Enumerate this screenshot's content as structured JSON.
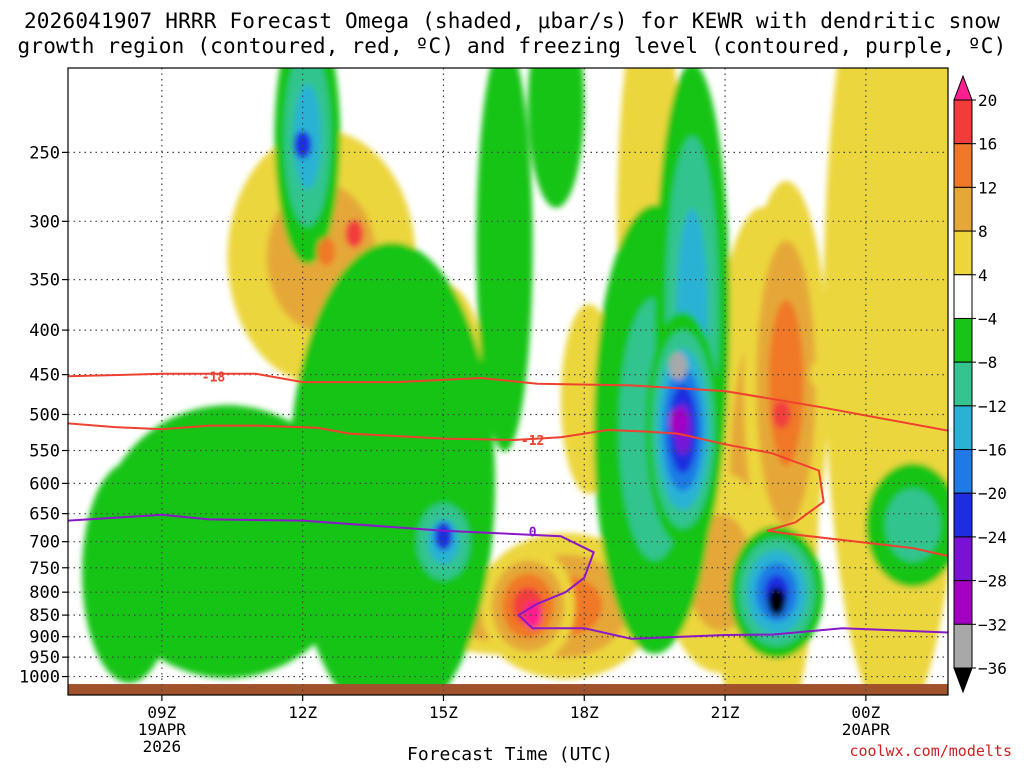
{
  "title_line1": "2026041907 HRRR Forecast Omega (shaded, μbar/s) for KEWR with dendritic snow",
  "title_line2": "growth region (contoured, red, ºC) and freezing level (contoured, purple, ºC)",
  "xlabel": "Forecast Time (UTC)",
  "credit": "coolwx.com/modelts",
  "chart_data": {
    "type": "heatmap",
    "x_unit": "hours after 2026041907 UTC",
    "xlim": [
      7,
      25.75
    ],
    "y_axis": {
      "label": "",
      "scale": "log",
      "range": [
        1050,
        200
      ],
      "ticks": [
        250,
        300,
        350,
        400,
        450,
        500,
        550,
        600,
        650,
        700,
        750,
        800,
        850,
        900,
        950,
        1000
      ]
    },
    "x_ticks": [
      {
        "hour": 9,
        "label": "09Z",
        "sub1": "19APR",
        "sub2": "2026"
      },
      {
        "hour": 12,
        "label": "12Z",
        "sub1": "",
        "sub2": ""
      },
      {
        "hour": 15,
        "label": "15Z",
        "sub1": "",
        "sub2": ""
      },
      {
        "hour": 18,
        "label": "18Z",
        "sub1": "",
        "sub2": ""
      },
      {
        "hour": 21,
        "label": "21Z",
        "sub1": "",
        "sub2": ""
      },
      {
        "hour": 24,
        "label": "00Z",
        "sub1": "20APR",
        "sub2": ""
      }
    ],
    "grid": true,
    "colorbar": {
      "levels": [
        "20",
        "16",
        "12",
        "8",
        "4",
        "−4",
        "−8",
        "−12",
        "−16",
        "−20",
        "−24",
        "−28",
        "−32",
        "−36"
      ],
      "colors": [
        "#ff1f8f",
        "#f23c3c",
        "#f07828",
        "#e5a838",
        "#ecd63c",
        "#ffffff",
        "#19c419",
        "#33c48f",
        "#2ab2d4",
        "#1f7ae6",
        "#1f2de0",
        "#7a12d6",
        "#a300c2",
        "#a8a8a8",
        "#000000"
      ]
    },
    "omega_features": [
      {
        "hour": 12.5,
        "p": 325,
        "value": 14
      },
      {
        "hour": 13.1,
        "p": 310,
        "value": 17
      },
      {
        "hour": 16.9,
        "p": 850,
        "value": 21
      },
      {
        "hour": 20.0,
        "p": 440,
        "value": -34
      },
      {
        "hour": 20.0,
        "p": 510,
        "value": -30
      },
      {
        "hour": 22.1,
        "p": 820,
        "value": -38
      },
      {
        "hour": 22.2,
        "p": 500,
        "value": 17
      },
      {
        "hour": 12.0,
        "p": 245,
        "value": -22
      },
      {
        "hour": 15.0,
        "p": 690,
        "value": -21
      },
      {
        "hour": 23.0,
        "p": 450,
        "value": 6
      }
    ],
    "contours": [
      {
        "name": "-18",
        "color": "#f04030",
        "label_at": [
          10.1,
          452
        ],
        "points": [
          [
            7,
            452
          ],
          [
            9,
            449
          ],
          [
            11,
            449
          ],
          [
            12,
            459
          ],
          [
            14,
            459
          ],
          [
            15.8,
            454
          ],
          [
            17,
            461
          ],
          [
            19,
            463
          ],
          [
            21,
            470
          ],
          [
            23,
            490
          ],
          [
            25.75,
            522
          ]
        ]
      },
      {
        "name": "-12",
        "color": "#f04030",
        "label_at": [
          16.9,
          535
        ],
        "points": [
          [
            7,
            512
          ],
          [
            8,
            517
          ],
          [
            9,
            520
          ],
          [
            10,
            515
          ],
          [
            11,
            515
          ],
          [
            12.3,
            518
          ],
          [
            13,
            526
          ],
          [
            15,
            533
          ],
          [
            16.5,
            535
          ],
          [
            17.5,
            531
          ],
          [
            18.5,
            521
          ],
          [
            19.3,
            523
          ],
          [
            20,
            526
          ],
          [
            21,
            541
          ],
          [
            22,
            554
          ],
          [
            23,
            580
          ],
          [
            23.1,
            630
          ],
          [
            22.5,
            665
          ],
          [
            21.9,
            680
          ],
          [
            22.3,
            685
          ],
          [
            25,
            712
          ],
          [
            25.75,
            727
          ]
        ]
      },
      {
        "name": "0",
        "color": "#8a17c8",
        "label_at": [
          16.9,
          681
        ],
        "points": [
          [
            7,
            662
          ],
          [
            9,
            652
          ],
          [
            10,
            660
          ],
          [
            12,
            662
          ],
          [
            13,
            668
          ],
          [
            15,
            680
          ],
          [
            16.5,
            686
          ],
          [
            17.5,
            690
          ],
          [
            18.2,
            720
          ],
          [
            18,
            770
          ],
          [
            17.6,
            800
          ],
          [
            17,
            825
          ],
          [
            16.6,
            850
          ],
          [
            16.9,
            880
          ],
          [
            18,
            880
          ],
          [
            19,
            905
          ],
          [
            21,
            896
          ],
          [
            22,
            895
          ],
          [
            23.5,
            880
          ],
          [
            25.75,
            890
          ]
        ]
      }
    ]
  }
}
